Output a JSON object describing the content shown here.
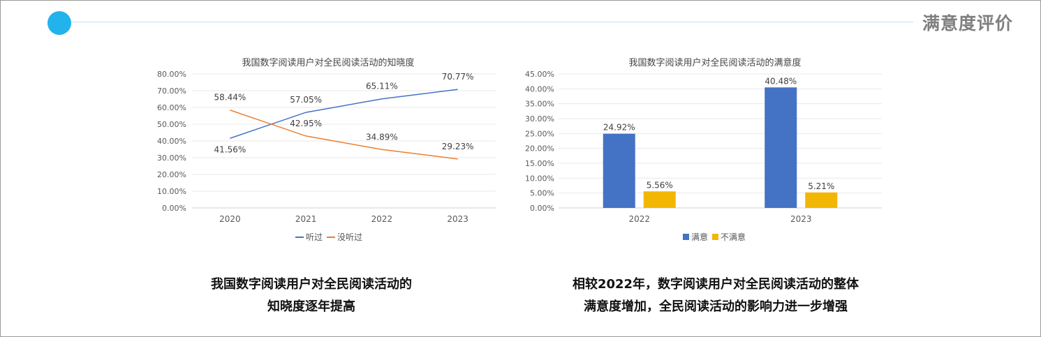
{
  "header": {
    "title": "满意度评价"
  },
  "chart_data": [
    {
      "type": "line",
      "title": "我国数字阅读用户对全民阅读活动的知晓度",
      "categories": [
        "2020",
        "2021",
        "2022",
        "2023"
      ],
      "series": [
        {
          "name": "听过",
          "color": "#4472c4",
          "values": [
            41.56,
            57.05,
            65.11,
            70.77
          ],
          "labels": [
            "41.56%",
            "57.05%",
            "65.11%",
            "70.77%"
          ]
        },
        {
          "name": "没听过",
          "color": "#ed7d31",
          "values": [
            58.44,
            42.95,
            34.89,
            29.23
          ],
          "labels": [
            "58.44%",
            "42.95%",
            "34.89%",
            "29.23%"
          ]
        }
      ],
      "ylim": [
        0,
        80
      ],
      "yticks": [
        "0.00%",
        "10.00%",
        "20.00%",
        "30.00%",
        "40.00%",
        "50.00%",
        "60.00%",
        "70.00%",
        "80.00%"
      ],
      "legend_position": "bottom"
    },
    {
      "type": "bar",
      "title": "我国数字阅读用户对全民阅读活动的满意度",
      "categories": [
        "2022",
        "2023"
      ],
      "series": [
        {
          "name": "满意",
          "color": "#4472c4",
          "values": [
            24.92,
            40.48
          ],
          "labels": [
            "24.92%",
            "40.48%"
          ]
        },
        {
          "name": "不满意",
          "color": "#f2b705",
          "values": [
            5.56,
            5.21
          ],
          "labels": [
            "5.56%",
            "5.21%"
          ]
        }
      ],
      "ylim": [
        0,
        45
      ],
      "yticks": [
        "0.00%",
        "5.00%",
        "10.00%",
        "15.00%",
        "20.00%",
        "25.00%",
        "30.00%",
        "35.00%",
        "40.00%",
        "45.00%"
      ],
      "legend_position": "bottom"
    }
  ],
  "captions": {
    "left": [
      "我国数字阅读用户对全民阅读活动的",
      "知晓度逐年提高"
    ],
    "right": [
      "相较2022年，数字阅读用户对全民阅读活动的整体",
      "满意度增加，全民阅读活动的影响力进一步增强"
    ]
  }
}
